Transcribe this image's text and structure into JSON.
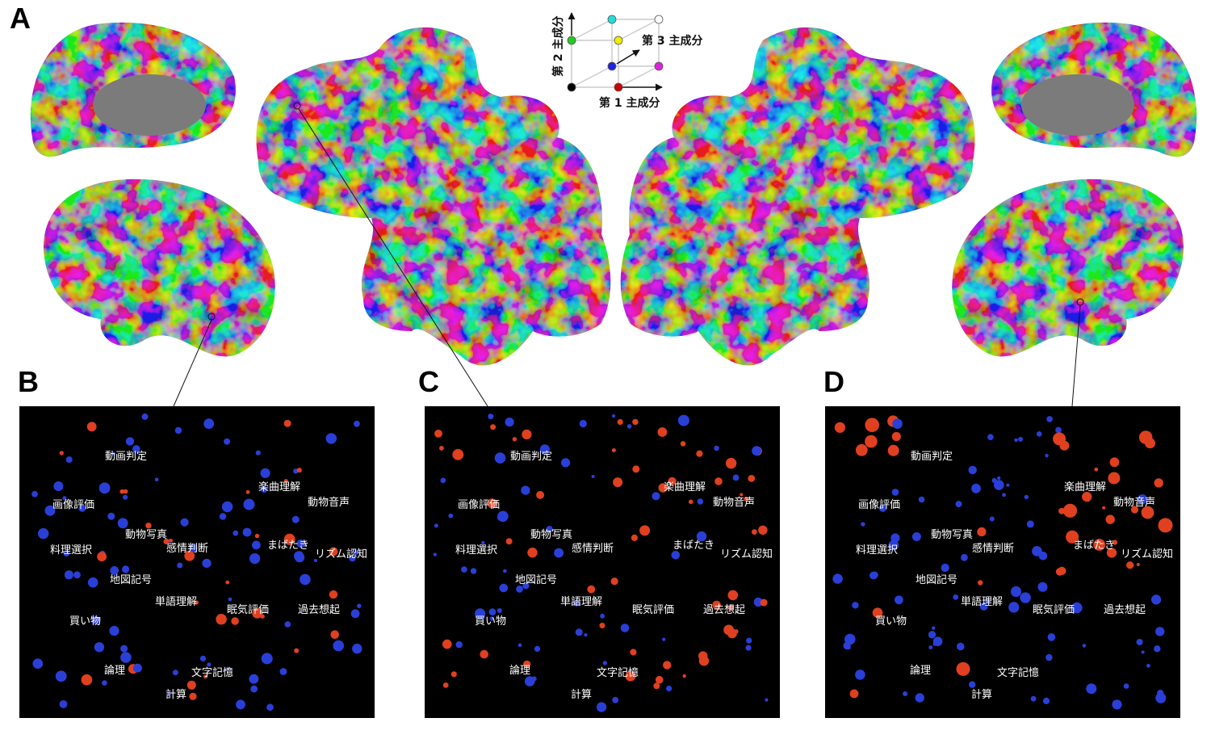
{
  "panel_labels": [
    "A",
    "B",
    "C",
    "D"
  ],
  "legend": {
    "axis1": "第 1 主成分",
    "axis2": "第 2 主成分",
    "axis3": "第 3 主成分"
  },
  "panels": [
    {
      "words": [
        "動画判定",
        "楽曲理解",
        "動物音声",
        "画像評価",
        "動物写真",
        "感情判断",
        "まばたき",
        "料理選択",
        "リズム認知",
        "地図記号",
        "単語理解",
        "眠気評価",
        "過去想起",
        "買い物",
        "論理",
        "文字記憶",
        "計算"
      ]
    },
    {
      "words": [
        "動画判定",
        "楽曲理解",
        "動物音声",
        "画像評価",
        "動物写真",
        "感情判断",
        "まばたき",
        "料理選択",
        "リズム認知",
        "地図記号",
        "単語理解",
        "眠気評価",
        "過去想起",
        "買い物",
        "論理",
        "文字記憶",
        "計算"
      ]
    },
    {
      "words": [
        "動画判定",
        "楽曲理解",
        "動物音声",
        "画像評価",
        "動物写真",
        "感情判断",
        "まばたき",
        "料理選択",
        "リズム認知",
        "地図記号",
        "単語理解",
        "眠気評価",
        "過去想起",
        "買い物",
        "論理",
        "文字記憶",
        "計算"
      ]
    }
  ]
}
